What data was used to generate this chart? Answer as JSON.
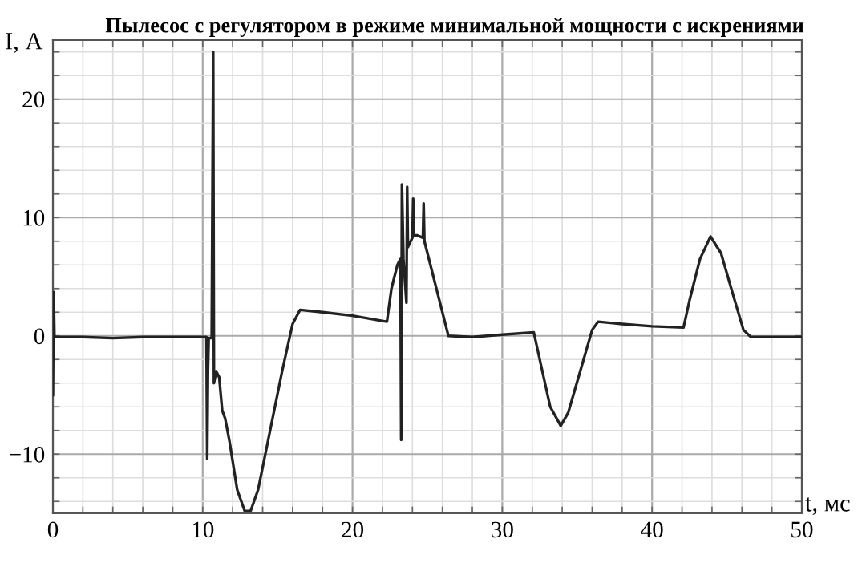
{
  "chart_data": {
    "type": "line",
    "title": "Пылесос с регулятором в режиме минимальной мощности с искрениями",
    "xlabel": "t, мс",
    "ylabel": "I, А",
    "series": [
      {
        "color": "#222222",
        "x": [
          0,
          0.05,
          0.1,
          0.15,
          2,
          4,
          6,
          8,
          10.25,
          10.3,
          10.35,
          10.4,
          10.6,
          10.7,
          10.75,
          10.9,
          11.1,
          11.3,
          11.5,
          11.8,
          12.3,
          12.8,
          13.2,
          13.7,
          14.5,
          15.3,
          16,
          16.5,
          18,
          20,
          22.3,
          22.6,
          23,
          23.2,
          23.25,
          23.3,
          23.4,
          23.6,
          23.65,
          23.7,
          24,
          24.05,
          24.1,
          24.3,
          24.7,
          24.75,
          24.8,
          25,
          25.7,
          26.4,
          28,
          30,
          32.1,
          32.5,
          33.2,
          33.9,
          34.4,
          35.2,
          36,
          36.4,
          38,
          40,
          42.1,
          42.5,
          43.2,
          43.9,
          44.6,
          45.4,
          46.1,
          46.6,
          48,
          50
        ],
        "values": [
          -5,
          3.7,
          0,
          -0.1,
          -0.1,
          -0.2,
          -0.1,
          -0.1,
          -0.1,
          -10.4,
          -3,
          -0.2,
          -0.2,
          24,
          -4,
          -3,
          -3.5,
          -6.3,
          -7,
          -9,
          -13,
          -14.8,
          -14.8,
          -13,
          -8,
          -3,
          1,
          2.2,
          2,
          1.7,
          1.2,
          4,
          6,
          6.5,
          -8.8,
          12.8,
          6.5,
          2.8,
          12.6,
          7.5,
          8.3,
          11.6,
          8.5,
          8.5,
          8.3,
          11.2,
          8,
          7,
          3.5,
          0,
          -0.1,
          0.1,
          0.3,
          -2,
          -6,
          -7.6,
          -6.5,
          -3,
          0.5,
          1.2,
          1,
          0.8,
          0.7,
          3,
          6.5,
          8.4,
          7,
          3.5,
          0.5,
          -0.1,
          -0.1,
          -0.1
        ]
      }
    ],
    "xlim": [
      0,
      50
    ],
    "ylim": [
      -15,
      25
    ],
    "xticks": [
      0,
      {
        "value": 2,
        "label": null
      },
      {
        "value": 4,
        "label": null
      },
      {
        "value": 6,
        "label": null
      },
      {
        "value": 8,
        "label": null
      },
      10,
      {
        "value": 12,
        "label": null
      },
      {
        "value": 14,
        "label": null
      },
      {
        "value": 16,
        "label": null
      },
      {
        "value": 18,
        "label": null
      },
      20,
      {
        "value": 22,
        "label": null
      },
      {
        "value": 24,
        "label": null
      },
      {
        "value": 26,
        "label": null
      },
      {
        "value": 28,
        "label": null
      },
      30,
      {
        "value": 32,
        "label": null
      },
      {
        "value": 34,
        "label": null
      },
      {
        "value": 36,
        "label": null
      },
      {
        "value": 38,
        "label": null
      },
      40,
      {
        "value": 42,
        "label": null
      },
      {
        "value": 44,
        "label": null
      },
      {
        "value": 46,
        "label": null
      },
      {
        "value": 48,
        "label": null
      },
      50
    ],
    "yticks": [
      {
        "value": -14,
        "label": null
      },
      {
        "value": -12,
        "label": null
      },
      -10,
      {
        "value": -8,
        "label": null
      },
      {
        "value": -6,
        "label": null
      },
      {
        "value": -4,
        "label": null
      },
      {
        "value": -2,
        "label": null
      },
      0,
      {
        "value": 2,
        "label": null
      },
      {
        "value": 4,
        "label": null
      },
      {
        "value": 6,
        "label": null
      },
      {
        "value": 8,
        "label": null
      },
      10,
      {
        "value": 12,
        "label": null
      },
      {
        "value": 14,
        "label": null
      },
      {
        "value": 16,
        "label": null
      },
      {
        "value": 18,
        "label": null
      },
      20,
      {
        "value": 22,
        "label": null
      },
      {
        "value": 24,
        "label": null
      }
    ],
    "grid": true,
    "marker": "none",
    "line_style": "solid",
    "legend": false
  }
}
